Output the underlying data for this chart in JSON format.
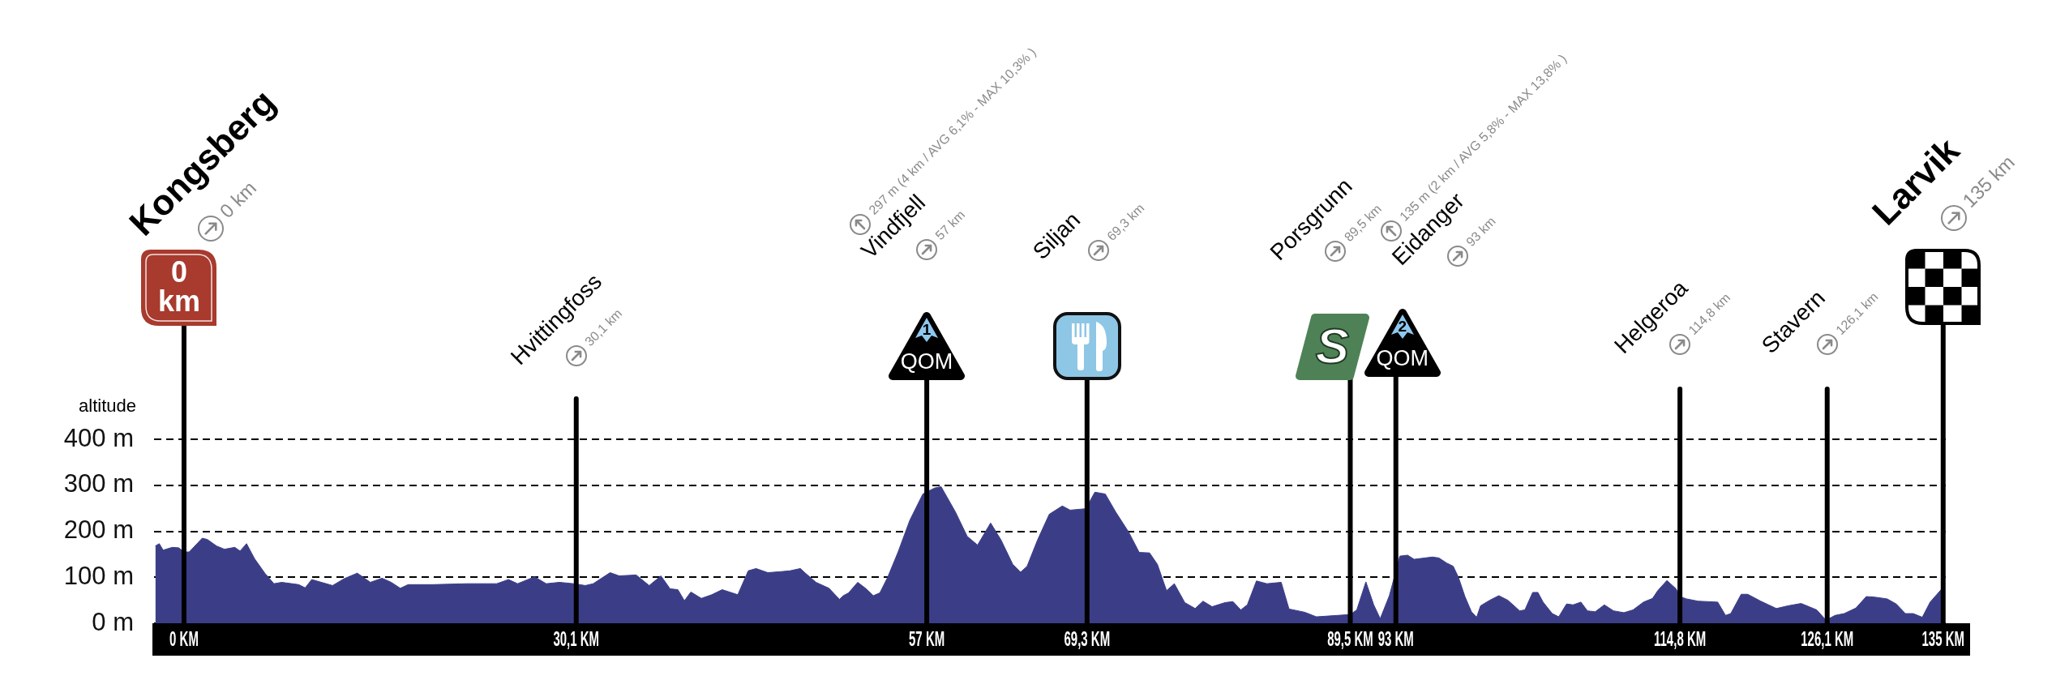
{
  "chart_data": {
    "type": "area",
    "ylabel": "altitude",
    "color": "#3b3e87",
    "x": [
      -2.2,
      -1.9,
      -1.6,
      -0.9,
      -0.4,
      0,
      0.4,
      1.4,
      1.8,
      2.5,
      3.1,
      3.9,
      4.3,
      4.8,
      5.4,
      6.2,
      6.9,
      7.5,
      8.8,
      9.3,
      9.8,
      11.4,
      12.3,
      13.3,
      14.3,
      15.2,
      15.9,
      16.6,
      17.2,
      19.1,
      21.7,
      24,
      24.9,
      25.6,
      26.9,
      27.8,
      28.8,
      29.9,
      30.8,
      31.4,
      32.7,
      33.4,
      34.7,
      35.7,
      36.6,
      37.3,
      37.9,
      38.4,
      38.9,
      39.7,
      40.5,
      41.3,
      42.5,
      43.3,
      43.9,
      44.8,
      45.7,
      46.5,
      47.3,
      47.6,
      48.5,
      49.5,
      50.3,
      50.6,
      51,
      51.7,
      52.3,
      52.9,
      53.4,
      54,
      54.8,
      55.7,
      56.7,
      57.6,
      58.1,
      59.2,
      60.1,
      60.9,
      61.9,
      62.7,
      63.6,
      64.2,
      64.7,
      65.5,
      66.4,
      67.4,
      68,
      69.2,
      69.9,
      70.7,
      71.5,
      72.5,
      73.3,
      74.1,
      74.7,
      75.4,
      76,
      76.8,
      77.6,
      78.2,
      78.9,
      79.9,
      80.5,
      81.1,
      81.6,
      82.3,
      83.1,
      84.2,
      84.8,
      86,
      86.9,
      88.5,
      89.5,
      90,
      90.7,
      91.3,
      91.8,
      92.5,
      92.9,
      93.3,
      93.9,
      94.4,
      95.8,
      96.3,
      96.9,
      97.4,
      97.8,
      98.3,
      98.8,
      99.2,
      99.5,
      100.2,
      100.9,
      101.6,
      102.5,
      102.9,
      103.5,
      103.9,
      104.3,
      105,
      105.5,
      106.1,
      106.6,
      107.2,
      107.7,
      108.3,
      109,
      109.7,
      110.5,
      111.2,
      112,
      112.7,
      113.1,
      113.8,
      114.5,
      114.8,
      115.3,
      116.2,
      117.7,
      118.3,
      118.7,
      119.5,
      120,
      121,
      122.2,
      123.1,
      124.1,
      125.3,
      125.9,
      126.1,
      126.7,
      127.4,
      128.3,
      129.1,
      129.7,
      130.7,
      131.4,
      132.1,
      132.7,
      133.4,
      134,
      134.9,
      135
    ],
    "values": [
      168,
      173,
      159,
      165,
      164,
      155,
      155,
      185,
      182,
      168,
      161,
      165,
      157,
      173,
      141,
      109,
      86,
      89,
      84,
      77,
      95,
      82,
      97,
      109,
      89,
      98,
      89,
      76,
      84,
      84,
      86,
      86,
      95,
      86,
      101,
      86,
      89,
      86,
      82,
      86,
      110,
      103,
      105,
      82,
      103,
      75,
      73,
      49,
      68,
      54,
      62,
      73,
      62,
      114,
      119,
      110,
      112,
      114,
      119,
      111,
      89,
      76,
      52,
      60,
      66,
      89,
      76,
      60,
      66,
      100,
      155,
      224,
      281,
      294,
      297,
      242,
      189,
      170,
      218,
      181,
      128,
      111,
      124,
      181,
      237,
      255,
      246,
      249,
      285,
      281,
      242,
      198,
      154,
      153,
      128,
      71,
      86,
      45,
      32,
      48,
      36,
      45,
      47,
      29,
      40,
      92,
      86,
      89,
      31,
      24,
      14,
      17,
      19,
      29,
      90,
      40,
      10,
      60,
      102,
      146,
      148,
      139,
      144,
      142,
      131,
      124,
      100,
      58,
      25,
      13,
      38,
      50,
      60,
      50,
      27,
      29,
      67,
      67,
      46,
      21,
      14,
      42,
      40,
      46,
      27,
      25,
      40,
      27,
      23,
      29,
      46,
      54,
      71,
      93,
      75,
      58,
      53,
      48,
      46,
      17,
      21,
      63,
      63,
      48,
      32,
      38,
      43,
      29,
      10,
      8,
      17,
      21,
      33,
      58,
      57,
      53,
      42,
      21,
      21,
      13,
      46,
      75,
      80
    ],
    "xlim": [
      -2.3,
      135.2
    ],
    "xticks": [
      {
        "value": 0,
        "label": "0 KM"
      },
      {
        "value": 30.1,
        "label": "30,1 KM"
      },
      {
        "value": 57,
        "label": "57 KM"
      },
      {
        "value": 69.3,
        "label": "69,3 KM"
      },
      {
        "value": 89.5,
        "label": "89,5 KM"
      },
      {
        "value": 93,
        "label": "93 KM"
      },
      {
        "value": 114.8,
        "label": "114,8 KM"
      },
      {
        "value": 126.1,
        "label": "126,1 KM"
      },
      {
        "value": 135,
        "label": "135 KM"
      }
    ],
    "ylim": [
      0,
      400
    ],
    "yticks": [
      {
        "value": 0,
        "label": "0 m"
      },
      {
        "value": 100,
        "label": "100 m"
      },
      {
        "value": 200,
        "label": "200 m"
      },
      {
        "value": 300,
        "label": "300 m"
      },
      {
        "value": 400,
        "label": "400 m"
      }
    ],
    "grid": "y",
    "ref_lines": [
      {
        "axis": "x",
        "value": 0,
        "label": "Kongsberg"
      },
      {
        "axis": "x",
        "value": 30.1,
        "label": "Hvittingfoss"
      },
      {
        "axis": "x",
        "value": 57,
        "label": "Vindfjell"
      },
      {
        "axis": "x",
        "value": 69.3,
        "label": "Siljan"
      },
      {
        "axis": "x",
        "value": 89.5,
        "label": "Porsgrunn"
      },
      {
        "axis": "x",
        "value": 93,
        "label": "Eidanger"
      },
      {
        "axis": "x",
        "value": 114.8,
        "label": "Helgeroa"
      },
      {
        "axis": "x",
        "value": 126.1,
        "label": "Stavern"
      },
      {
        "axis": "x",
        "value": 135,
        "label": "Larvik"
      }
    ],
    "annotations": [
      "0 km",
      "0 km",
      "30,1 km",
      "57 km",
      "297 m (4 km / AVG 6,1% - MAX 10,3% )",
      "QOM",
      "1",
      "69,3 km",
      "89,5 km",
      "S",
      "93 km",
      "135 m (2 km / AVG 5,8% - MAX 13,8% )",
      "QOM",
      "2",
      "114,8 km",
      "126,1 km",
      "135 km"
    ]
  }
}
